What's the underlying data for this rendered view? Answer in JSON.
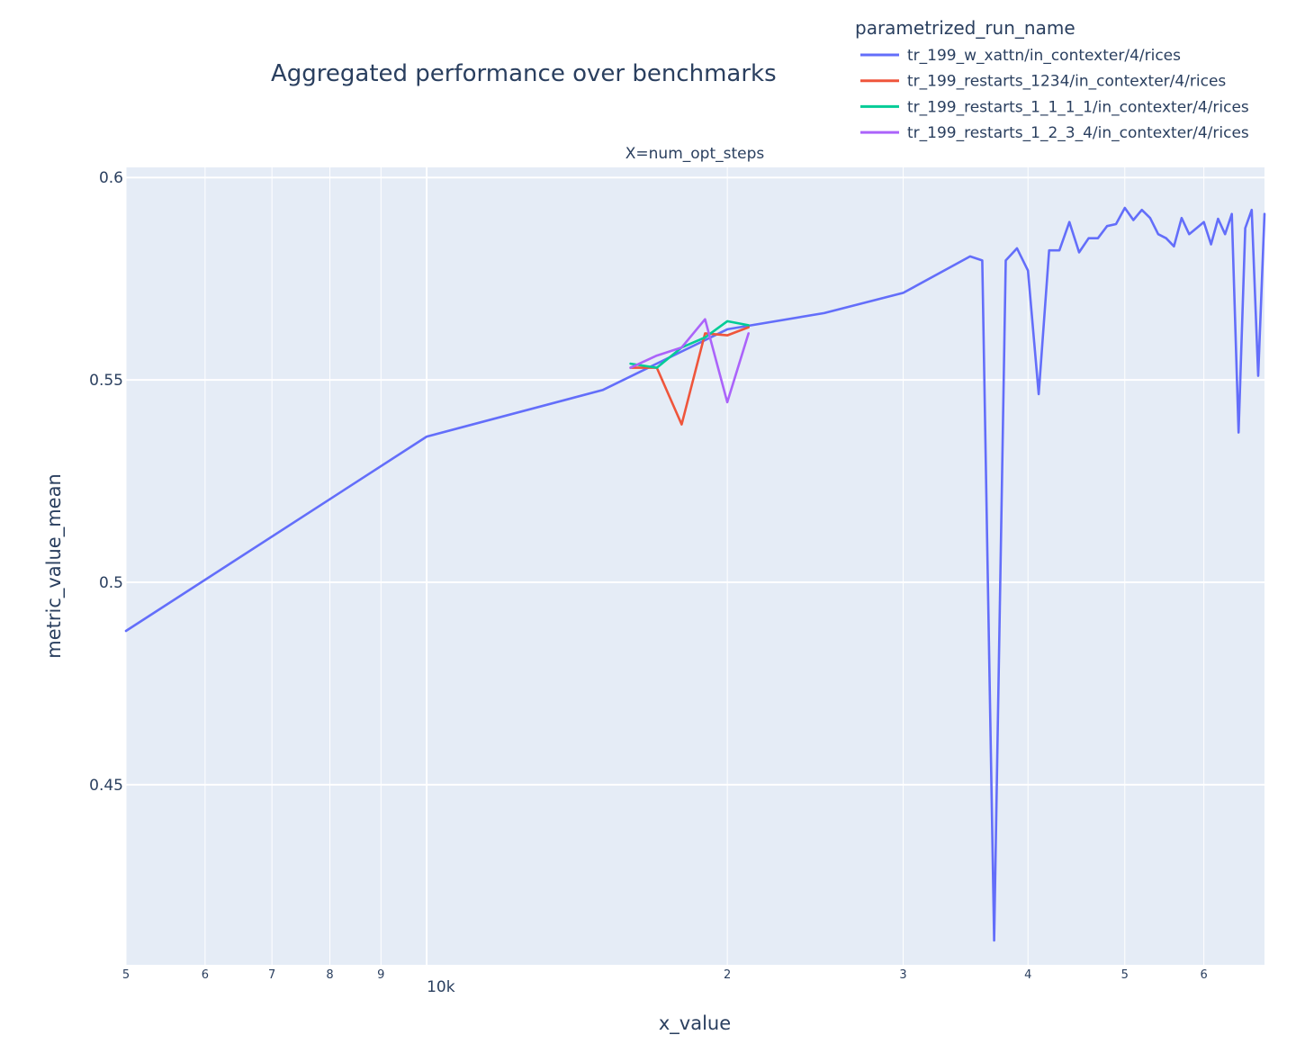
{
  "chart_data": {
    "type": "line",
    "title": "Aggregated performance over benchmarks",
    "subplot_title": "X=num_opt_steps",
    "xlabel": "x_value",
    "ylabel": "metric_value_mean",
    "x_scale": "log",
    "xlim": [
      5000,
      69000
    ],
    "ylim": [
      0.4055,
      0.6025
    ],
    "grid": true,
    "legend_title": "parametrized_run_name",
    "legend_position": "top-right",
    "x_ticks": [
      {
        "value": 5000,
        "label": "5"
      },
      {
        "value": 6000,
        "label": "6"
      },
      {
        "value": 7000,
        "label": "7"
      },
      {
        "value": 8000,
        "label": "8"
      },
      {
        "value": 9000,
        "label": "9"
      },
      {
        "value": 10000,
        "label": "10k"
      },
      {
        "value": 20000,
        "label": "2"
      },
      {
        "value": 30000,
        "label": "3"
      },
      {
        "value": 40000,
        "label": "4"
      },
      {
        "value": 50000,
        "label": "5"
      },
      {
        "value": 60000,
        "label": "6"
      }
    ],
    "y_ticks": [
      {
        "value": 0.45,
        "label": "0.45"
      },
      {
        "value": 0.5,
        "label": "0.5"
      },
      {
        "value": 0.55,
        "label": "0.55"
      },
      {
        "value": 0.6,
        "label": "0.6"
      }
    ],
    "series": [
      {
        "name": "tr_199_w_xattn/in_contexter/4/rices",
        "color": "#636efa",
        "points": [
          [
            5000,
            0.488
          ],
          [
            10000,
            0.536
          ],
          [
            15000,
            0.5475
          ],
          [
            20000,
            0.5625
          ],
          [
            25000,
            0.5665
          ],
          [
            30000,
            0.5715
          ],
          [
            35000,
            0.5805
          ],
          [
            36000,
            0.5795
          ],
          [
            37000,
            0.4115
          ],
          [
            38000,
            0.5795
          ],
          [
            39000,
            0.5825
          ],
          [
            40000,
            0.577
          ],
          [
            41000,
            0.5465
          ],
          [
            42000,
            0.582
          ],
          [
            43000,
            0.582
          ],
          [
            44000,
            0.589
          ],
          [
            45000,
            0.5815
          ],
          [
            46000,
            0.585
          ],
          [
            47000,
            0.585
          ],
          [
            48000,
            0.588
          ],
          [
            49000,
            0.5885
          ],
          [
            50000,
            0.5925
          ],
          [
            51000,
            0.5895
          ],
          [
            52000,
            0.592
          ],
          [
            53000,
            0.59
          ],
          [
            54000,
            0.586
          ],
          [
            55000,
            0.585
          ],
          [
            56000,
            0.583
          ],
          [
            57000,
            0.59
          ],
          [
            58000,
            0.586
          ],
          [
            59000,
            0.5875
          ],
          [
            60000,
            0.589
          ],
          [
            61000,
            0.5835
          ],
          [
            62000,
            0.5898
          ],
          [
            63000,
            0.586
          ],
          [
            64000,
            0.591
          ],
          [
            65000,
            0.537
          ],
          [
            66000,
            0.5875
          ],
          [
            67000,
            0.592
          ],
          [
            68000,
            0.551
          ],
          [
            69000,
            0.591
          ]
        ]
      },
      {
        "name": "tr_199_restarts_1234/in_contexter/4/rices",
        "color": "#ef553b",
        "points": [
          [
            16000,
            0.553
          ],
          [
            17000,
            0.553
          ],
          [
            18000,
            0.539
          ],
          [
            19000,
            0.5615
          ],
          [
            20000,
            0.561
          ],
          [
            21000,
            0.563
          ]
        ]
      },
      {
        "name": "tr_199_restarts_1_1_1_1/in_contexter/4/rices",
        "color": "#00cc96",
        "points": [
          [
            16000,
            0.554
          ],
          [
            17000,
            0.553
          ],
          [
            18000,
            0.558
          ],
          [
            19000,
            0.5605
          ],
          [
            20000,
            0.5645
          ],
          [
            21000,
            0.5635
          ]
        ]
      },
      {
        "name": "tr_199_restarts_1_2_3_4/in_contexter/4/rices",
        "color": "#ab63fa",
        "points": [
          [
            16000,
            0.553
          ],
          [
            17000,
            0.556
          ],
          [
            18000,
            0.558
          ],
          [
            19000,
            0.565
          ],
          [
            20000,
            0.5445
          ],
          [
            21000,
            0.5615
          ]
        ]
      }
    ]
  }
}
